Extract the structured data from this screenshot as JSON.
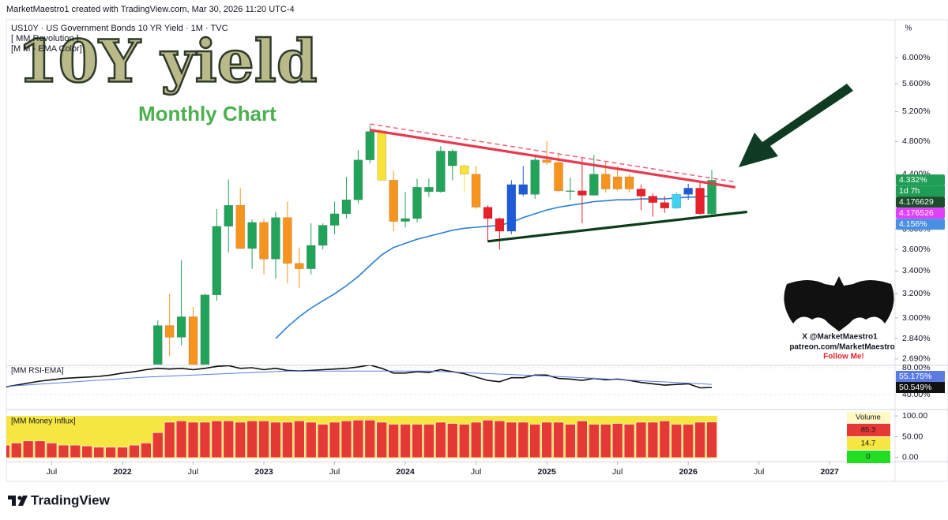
{
  "attribution": "MarketMaestro1 created with TradingView.com, Mar 30, 2026 11:20 UTC-4",
  "overlay": {
    "big_title": "10Y yield",
    "subtitle": "Monthly Chart",
    "indicators": [
      "[ MM Revolution ]",
      "[M M - EMA Color]"
    ]
  },
  "branding": {
    "lines": [
      "X @MarketMaestro1",
      "patreon.com/MarketMaestro",
      "Follow Me!"
    ]
  },
  "unit_label": "%",
  "footer": "TradingView",
  "chart_data": [
    {
      "type": "candlestick",
      "title": "US10Y · US Government Bonds 10 YR Yield · 1M · TVC",
      "log_scale": true,
      "x": [
        "2022-04",
        "2022-05",
        "2022-06",
        "2022-07",
        "2022-08",
        "2022-09",
        "2022-10",
        "2022-11",
        "2022-12",
        "2023-01",
        "2023-02",
        "2023-03",
        "2023-04",
        "2023-05",
        "2023-06",
        "2023-07",
        "2023-08",
        "2023-09",
        "2023-10",
        "2023-11",
        "2023-12",
        "2024-01",
        "2024-02",
        "2024-03",
        "2024-04",
        "2024-05",
        "2024-06",
        "2024-07",
        "2024-08",
        "2024-09",
        "2024-10",
        "2024-11",
        "2024-12",
        "2025-01",
        "2025-02",
        "2025-03",
        "2025-04",
        "2025-05",
        "2025-06",
        "2025-07",
        "2025-08",
        "2025-09",
        "2025-10",
        "2025-11",
        "2025-12",
        "2026-01",
        "2026-02",
        "2026-03"
      ],
      "open": [
        2.34,
        2.94,
        2.85,
        3.01,
        2.65,
        3.19,
        3.83,
        4.05,
        3.61,
        3.87,
        3.51,
        3.92,
        3.47,
        3.42,
        3.64,
        3.84,
        3.96,
        4.11,
        4.57,
        4.93,
        4.33,
        3.88,
        3.91,
        4.25,
        4.2,
        4.68,
        4.5,
        4.4,
        4.03,
        3.91,
        3.78,
        4.28,
        4.17,
        4.57,
        4.54,
        4.21,
        4.21,
        4.16,
        4.4,
        4.23,
        4.37,
        4.23,
        4.15,
        4.08,
        4.02,
        4.17,
        4.24,
        3.96
      ],
      "high": [
        2.98,
        3.2,
        3.5,
        3.09,
        3.2,
        4.01,
        4.34,
        4.24,
        3.9,
        3.91,
        3.98,
        4.09,
        3.62,
        3.86,
        3.86,
        4.09,
        4.37,
        4.69,
        5.02,
        4.95,
        4.44,
        4.2,
        4.35,
        4.35,
        4.74,
        4.7,
        4.52,
        4.5,
        4.05,
        3.92,
        4.33,
        4.5,
        4.63,
        4.81,
        4.66,
        4.36,
        4.59,
        4.63,
        4.55,
        4.5,
        4.4,
        4.28,
        4.18,
        4.15,
        4.2,
        4.29,
        4.3,
        4.45
      ],
      "low": [
        2.33,
        2.71,
        2.79,
        2.57,
        2.52,
        3.14,
        3.57,
        3.61,
        3.42,
        3.37,
        3.33,
        3.29,
        3.25,
        3.37,
        3.6,
        3.75,
        3.91,
        4.07,
        4.53,
        4.33,
        3.78,
        3.82,
        3.87,
        4.14,
        4.19,
        4.33,
        4.19,
        4.01,
        3.67,
        3.6,
        3.75,
        4.15,
        4.12,
        4.51,
        4.2,
        4.11,
        3.86,
        4.16,
        4.19,
        4.21,
        4.19,
        4.0,
        3.93,
        3.97,
        4.01,
        4.11,
        3.95,
        3.95
      ],
      "close": [
        2.94,
        2.85,
        3.01,
        2.65,
        3.19,
        3.83,
        4.05,
        3.61,
        3.87,
        3.51,
        3.92,
        3.47,
        3.42,
        3.64,
        3.84,
        3.96,
        4.11,
        4.57,
        4.93,
        4.33,
        3.88,
        3.91,
        4.25,
        4.2,
        4.68,
        4.5,
        4.4,
        4.03,
        3.91,
        3.78,
        4.28,
        4.17,
        4.57,
        4.54,
        4.21,
        4.21,
        4.16,
        4.4,
        4.23,
        4.37,
        4.23,
        4.15,
        4.08,
        4.02,
        4.17,
        4.24,
        3.96,
        4.33
      ],
      "colors": [
        "#22a35a",
        "#f7941d",
        "#22a35a",
        "#f7941d",
        "#22a35a",
        "#22a35a",
        "#22a35a",
        "#f7941d",
        "#22a35a",
        "#f7941d",
        "#22a35a",
        "#f7941d",
        "#f7941d",
        "#22a35a",
        "#22a35a",
        "#22a35a",
        "#22a35a",
        "#22a35a",
        "#22a35a",
        "#f9e33a",
        "#f7941d",
        "#22a35a",
        "#22a35a",
        "#22a35a",
        "#22a35a",
        "#22a35a",
        "#f9e33a",
        "#f7941d",
        "#e8202a",
        "#e8202a",
        "#1e5bd8",
        "#1e5bd8",
        "#22a35a",
        "#f7941d",
        "#f7941d",
        "#22a35a",
        "#e8202a",
        "#22a35a",
        "#f7941d",
        "#f7941d",
        "#f7941d",
        "#e8202a",
        "#e8202a",
        "#e8202a",
        "#3fd3f0",
        "#1e5bd8",
        "#e8202a",
        "#22a35a"
      ],
      "ma": {
        "color": "#2a7fd4",
        "x": [
          "2023-02",
          "2023-03",
          "2023-04",
          "2023-05",
          "2023-06",
          "2023-07",
          "2023-08",
          "2023-09",
          "2023-10",
          "2023-11",
          "2023-12",
          "2024-01",
          "2024-02",
          "2024-03",
          "2024-04",
          "2024-05",
          "2024-06",
          "2024-07",
          "2024-08",
          "2024-09",
          "2024-10",
          "2024-11",
          "2024-12",
          "2025-01",
          "2025-02",
          "2025-03",
          "2025-04",
          "2025-05",
          "2025-06",
          "2025-07",
          "2025-08",
          "2025-09",
          "2025-10",
          "2025-11",
          "2025-12",
          "2026-01",
          "2026-02",
          "2026-03"
        ],
        "values": [
          2.84,
          2.93,
          3.01,
          3.08,
          3.14,
          3.2,
          3.27,
          3.35,
          3.45,
          3.55,
          3.62,
          3.66,
          3.7,
          3.73,
          3.76,
          3.79,
          3.81,
          3.82,
          3.83,
          3.84,
          3.87,
          3.92,
          3.96,
          4.0,
          4.03,
          4.05,
          4.07,
          4.09,
          4.1,
          4.11,
          4.11,
          4.12,
          4.12,
          4.12,
          4.13,
          4.14,
          4.14,
          4.156
        ]
      },
      "trendlines": [
        {
          "color": "#f0607a",
          "dashed": true,
          "x": [
            "2023-10",
            "2026-05"
          ],
          "values": [
            5.03,
            4.31
          ]
        },
        {
          "color": "#e8394f",
          "dashed": false,
          "x": [
            "2023-10",
            "2026-05"
          ],
          "values": [
            4.95,
            4.25
          ]
        },
        {
          "color": "#0b3d1a",
          "dashed": false,
          "x": [
            "2024-08",
            "2026-06"
          ],
          "values": [
            3.68,
            3.98
          ]
        }
      ],
      "price_labels": [
        {
          "value": 4.332,
          "label": "4.332%",
          "color": "#1f9d55",
          "note": "1d 7h"
        },
        {
          "value": 4.176629,
          "color": "#1b4d2b"
        },
        {
          "value": 4.176526,
          "color": "#e040fb"
        },
        {
          "value": 4.156,
          "label": "4.156%",
          "color": "#4a90e2"
        }
      ],
      "ylim": [
        2.65,
        6.64
      ],
      "yticks": [
        {
          "value": 2.69,
          "label": "2.690%"
        },
        {
          "value": 2.84,
          "label": "2.840%"
        },
        {
          "value": 3,
          "label": "3.000%"
        },
        {
          "value": 3.2,
          "label": "3.200%"
        },
        {
          "value": 3.4,
          "label": "3.400%"
        },
        {
          "value": 3.6,
          "label": "3.600%"
        },
        {
          "value": 3.8,
          "label": "3.800%"
        },
        {
          "value": 4.4,
          "label": "4.400%"
        },
        {
          "value": 4.8,
          "label": "4.800%"
        },
        {
          "value": 5.2,
          "label": "5.200%"
        },
        {
          "value": 5.6,
          "label": "5.600%"
        },
        {
          "value": 6,
          "label": "6.000%"
        }
      ]
    },
    {
      "type": "line",
      "title": "[MM RSI-EMA]",
      "series": [
        {
          "color": "#111111",
          "last_label": "50.549%",
          "x": [
            "2021-03",
            "2021-04",
            "2021-05",
            "2021-06",
            "2021-07",
            "2021-08",
            "2021-09",
            "2021-10",
            "2021-11",
            "2021-12",
            "2022-01",
            "2022-02",
            "2022-03",
            "2022-04",
            "2022-05",
            "2022-06",
            "2022-07",
            "2022-08",
            "2022-09",
            "2022-10",
            "2022-11",
            "2022-12",
            "2023-01",
            "2023-02",
            "2023-03",
            "2023-04",
            "2023-05",
            "2023-06",
            "2023-07",
            "2023-08",
            "2023-09",
            "2023-10",
            "2023-11",
            "2023-12",
            "2024-01",
            "2024-02",
            "2024-03",
            "2024-04",
            "2024-05",
            "2024-06",
            "2024-07",
            "2024-08",
            "2024-09",
            "2024-10",
            "2024-11",
            "2024-12",
            "2025-01",
            "2025-02",
            "2025-03",
            "2025-04",
            "2025-05",
            "2025-06",
            "2025-07",
            "2025-08",
            "2025-09",
            "2025-10",
            "2025-11",
            "2025-12",
            "2026-01",
            "2026-02",
            "2026-03"
          ],
          "values": [
            51,
            54,
            57,
            60,
            62,
            64,
            65,
            66,
            67,
            69,
            72,
            74,
            77,
            79,
            78,
            79,
            77,
            79,
            82,
            83,
            79,
            80,
            77,
            79,
            76,
            75,
            76,
            77,
            78,
            79,
            81,
            84,
            79,
            72,
            72,
            74,
            73,
            77,
            74,
            71,
            66,
            61,
            59,
            65,
            65,
            69,
            69,
            64,
            63,
            61,
            64,
            62,
            63,
            61,
            58,
            56,
            54,
            55,
            56,
            50,
            50.549
          ]
        },
        {
          "color": "#5b7be0",
          "last_label": "55.175%",
          "x": [
            "2021-03",
            "2022-03",
            "2023-03",
            "2024-03",
            "2025-03",
            "2026-03"
          ],
          "values": [
            52,
            66,
            75,
            75,
            66,
            55.175
          ]
        }
      ],
      "ylim": [
        20,
        83.5
      ],
      "yticks": [
        {
          "value": 80,
          "label": "80.00%"
        },
        {
          "value": 40,
          "label": "40.00%"
        }
      ]
    },
    {
      "type": "bar",
      "title": "[MM Money Influx]",
      "color": "#e53935",
      "x": [
        "2021-03",
        "2021-04",
        "2021-05",
        "2021-06",
        "2021-07",
        "2021-08",
        "2021-09",
        "2021-10",
        "2021-11",
        "2021-12",
        "2022-01",
        "2022-02",
        "2022-03",
        "2022-04",
        "2022-05",
        "2022-06",
        "2022-07",
        "2022-08",
        "2022-09",
        "2022-10",
        "2022-11",
        "2022-12",
        "2023-01",
        "2023-02",
        "2023-03",
        "2023-04",
        "2023-05",
        "2023-06",
        "2023-07",
        "2023-08",
        "2023-09",
        "2023-10",
        "2023-11",
        "2023-12",
        "2024-01",
        "2024-02",
        "2024-03",
        "2024-04",
        "2024-05",
        "2024-06",
        "2024-07",
        "2024-08",
        "2024-09",
        "2024-10",
        "2024-11",
        "2024-12",
        "2025-01",
        "2025-02",
        "2025-03",
        "2025-04",
        "2025-05",
        "2025-06",
        "2025-07",
        "2025-08",
        "2025-09",
        "2025-10",
        "2025-11",
        "2025-12",
        "2026-01",
        "2026-02",
        "2026-03"
      ],
      "values": [
        30,
        35,
        40,
        40,
        35,
        30,
        30,
        28,
        25,
        25,
        25,
        30,
        35,
        60,
        85,
        88,
        85,
        85,
        88,
        88,
        85,
        88,
        88,
        85,
        85,
        88,
        85,
        80,
        85,
        88,
        90,
        90,
        85,
        80,
        80,
        80,
        80,
        85,
        82,
        80,
        85,
        90,
        88,
        85,
        85,
        80,
        85,
        85,
        80,
        88,
        80,
        80,
        82,
        80,
        85,
        85,
        88,
        80,
        80,
        85,
        85.3
      ],
      "legend": {
        "title": "Volume",
        "items": [
          {
            "value": 85.3,
            "color": "#e53935"
          },
          {
            "value": 14.7,
            "color": "#f5e642"
          },
          {
            "value": 0,
            "color": "#22dd22"
          }
        ]
      },
      "ylim": [
        -5.8,
        111.5
      ],
      "yticks": [
        {
          "value": 100,
          "label": "100.00"
        },
        {
          "value": 50,
          "label": "50.00"
        },
        {
          "value": 0,
          "label": "0.00"
        }
      ],
      "xticks": [
        {
          "value": "2021-07",
          "label": "Jul"
        },
        2022,
        {
          "value": "2022-07",
          "label": "Jul"
        },
        2023,
        {
          "value": "2023-07",
          "label": "Jul"
        },
        2024,
        {
          "value": "2024-07",
          "label": "Jul"
        },
        2025,
        {
          "value": "2025-07",
          "label": "Jul"
        },
        2026,
        {
          "value": "2026-07",
          "label": "Jul"
        },
        2027
      ]
    }
  ]
}
